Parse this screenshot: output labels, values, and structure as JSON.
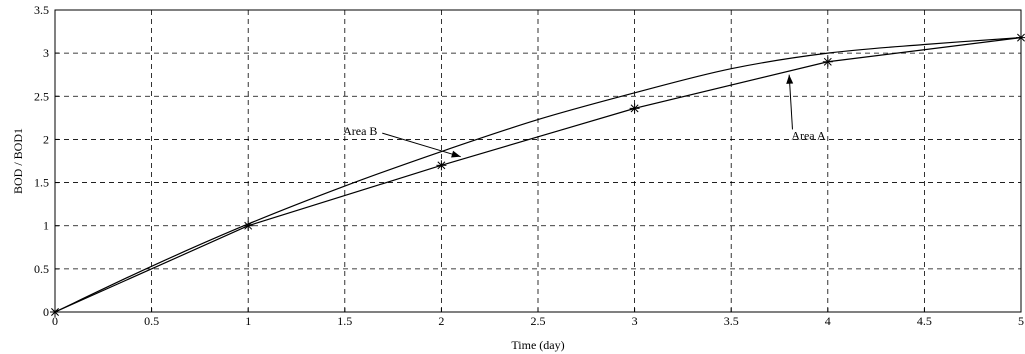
{
  "chart_data": {
    "type": "line",
    "title": "",
    "xlabel": "Time (day)",
    "ylabel": "BOD / BOD1",
    "xlim": [
      0,
      5
    ],
    "ylim": [
      0,
      3.5
    ],
    "xticks": [
      "0",
      "0.5",
      "1",
      "1.5",
      "2",
      "2.5",
      "3",
      "3.5",
      "4",
      "4.5",
      "5"
    ],
    "yticks": [
      "0",
      "0.5",
      "1",
      "1.5",
      "2",
      "2.5",
      "3",
      "3.5"
    ],
    "grid": true,
    "series": [
      {
        "style": "smooth",
        "x": [
          0,
          0.5,
          1,
          1.5,
          2,
          2.5,
          3,
          3.5,
          4,
          4.5,
          5
        ],
        "y": [
          0,
          0.53,
          1.02,
          1.46,
          1.86,
          2.23,
          2.54,
          2.82,
          3.0,
          3.1,
          3.18
        ]
      },
      {
        "style": "polyline",
        "marker": "asterisk",
        "x": [
          0,
          1,
          2,
          3,
          4,
          5
        ],
        "y": [
          0,
          1.0,
          1.7,
          2.36,
          2.9,
          3.18
        ]
      }
    ],
    "annotations": [
      {
        "text": "Area B",
        "x": 1.58,
        "y": 2.05,
        "arrow_to": [
          2.1,
          1.8
        ]
      },
      {
        "text": "Area A",
        "x": 3.9,
        "y": 2.0,
        "arrow_to": [
          3.8,
          2.75
        ]
      }
    ]
  }
}
